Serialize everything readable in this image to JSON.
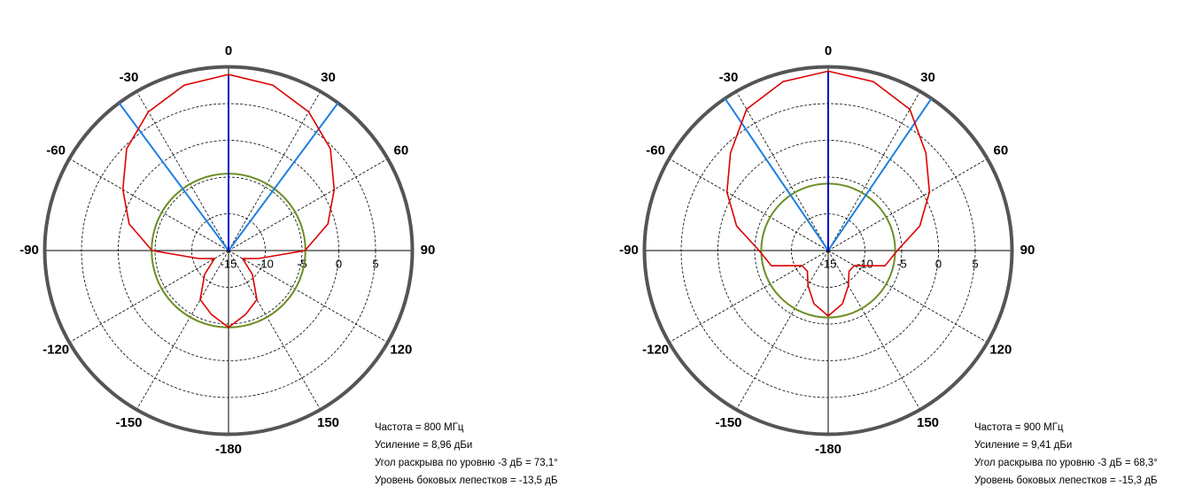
{
  "chart_data": [
    {
      "type": "polar",
      "x": [
        -180,
        -165,
        -150,
        -135,
        -120,
        -105,
        -90,
        -75,
        -60,
        -45,
        -30,
        -15,
        0,
        15,
        30,
        45,
        60,
        75,
        90,
        105,
        120,
        135,
        150,
        165
      ],
      "series": [
        {
          "color": "#dd0000",
          "values": [
            -4.54,
            -6,
            -7.3,
            -10.4,
            -12.8,
            -10.8,
            -4.6,
            -1,
            1.6,
            4.6,
            6.8,
            8.3,
            8.96,
            8.3,
            6.8,
            4.6,
            1.6,
            -1,
            -4.6,
            -10.8,
            -12.8,
            -10.4,
            -7.3,
            -6
          ]
        }
      ],
      "reference_level": -4.54,
      "reference_color": "#6b8e23",
      "beam_lines": [
        -36.55,
        36.55
      ],
      "beam_color": "#1f7fe0",
      "main_direction": 0,
      "main_color": "#0000c8",
      "rlim": [
        -15,
        10
      ],
      "rticks": [
        -15,
        -10,
        -5,
        0,
        5
      ],
      "angle_ticks": [
        0,
        30,
        60,
        90,
        120,
        150,
        -180,
        -150,
        -120,
        -90,
        -60,
        -30
      ],
      "grid": true,
      "annotations": [
        "Частота = 800 МГц",
        "Усиление = 8,96 дБи",
        "Угол раскрыва по уровню -3 дБ = 73,1°",
        "Уровень боковых лепестков = -13,5 дБ"
      ]
    },
    {
      "type": "polar",
      "x": [
        -180,
        -165,
        -150,
        -135,
        -120,
        -105,
        -90,
        -75,
        -60,
        -45,
        -30,
        -15,
        0,
        15,
        30,
        45,
        60,
        75,
        90,
        105,
        120,
        135,
        150,
        165
      ],
      "series": [
        {
          "color": "#dd0000",
          "values": [
            -6.1,
            -7.5,
            -9.5,
            -11,
            -10.9,
            -7,
            -5.6,
            -2.1,
            0.9,
            3.8,
            7.2,
            8.8,
            9.41,
            8.8,
            7.2,
            3.8,
            0.9,
            -2.1,
            -5.6,
            -7,
            -10.9,
            -11,
            -9.5,
            -7.5
          ]
        }
      ],
      "reference_level": -5.89,
      "reference_color": "#6b8e23",
      "beam_lines": [
        -34.15,
        34.15
      ],
      "beam_color": "#1f7fe0",
      "main_direction": 0,
      "main_color": "#0000c8",
      "rlim": [
        -15,
        10
      ],
      "rticks": [
        -15,
        -10,
        -5,
        0,
        5
      ],
      "angle_ticks": [
        0,
        30,
        60,
        90,
        120,
        150,
        -180,
        -150,
        -120,
        -90,
        -60,
        -30
      ],
      "grid": true,
      "annotations": [
        "Частота = 900 МГц",
        "Усиление = 9,41 дБи",
        "Угол раскрыва по уровню -3 дБ = 68,3°",
        "Уровень боковых лепестков = -15,3 дБ"
      ]
    }
  ]
}
